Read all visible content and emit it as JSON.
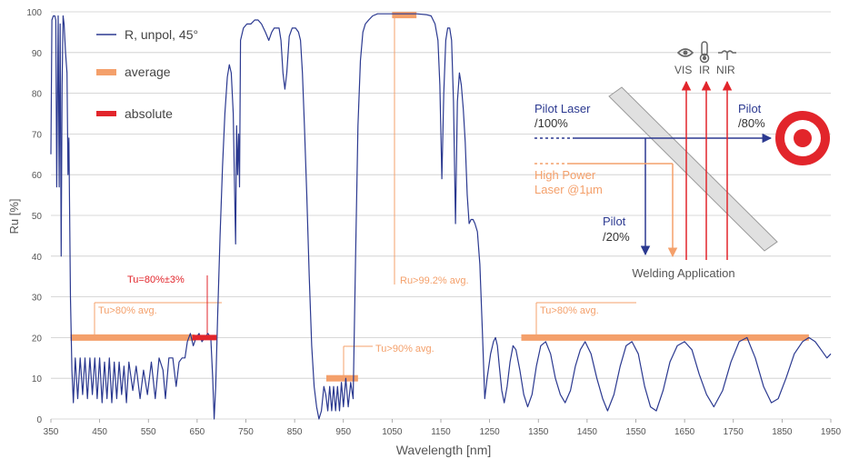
{
  "chart_data": {
    "type": "line",
    "title": "",
    "xlabel": "Wavelength [nm]",
    "ylabel": "Ru [%]",
    "xlim": [
      350,
      1950
    ],
    "ylim": [
      0,
      100
    ],
    "grid": "horizontal",
    "xticks": [
      "350",
      "450",
      "550",
      "650",
      "750",
      "850",
      "950",
      "1050",
      "1150",
      "1250",
      "1350",
      "1450",
      "1550",
      "1650",
      "1750",
      "1850",
      "1950"
    ],
    "yticks": [
      "0",
      "10",
      "20",
      "30",
      "40",
      "50",
      "60",
      "70",
      "80",
      "90",
      "100"
    ],
    "legend": [
      {
        "label": "R, unpol, 45°",
        "kind": "line",
        "color": "#2b3990"
      },
      {
        "label": "average",
        "kind": "bar",
        "color": "#f4a06b"
      },
      {
        "label": "absolute",
        "kind": "bar",
        "color": "#e2252b"
      }
    ],
    "series": [
      {
        "name": "R, unpol, 45°",
        "color": "#2b3990",
        "points": [
          [
            350,
            65
          ],
          [
            352,
            98
          ],
          [
            355,
            99
          ],
          [
            358,
            99
          ],
          [
            360,
            98
          ],
          [
            362,
            57
          ],
          [
            365,
            99
          ],
          [
            367,
            57
          ],
          [
            369,
            97
          ],
          [
            371,
            40
          ],
          [
            373,
            82
          ],
          [
            375,
            99
          ],
          [
            377,
            97
          ],
          [
            380,
            90
          ],
          [
            383,
            85
          ],
          [
            385,
            60
          ],
          [
            387,
            69
          ],
          [
            390,
            30
          ],
          [
            393,
            12
          ],
          [
            396,
            4
          ],
          [
            400,
            15
          ],
          [
            405,
            5
          ],
          [
            410,
            15
          ],
          [
            415,
            6
          ],
          [
            420,
            15
          ],
          [
            425,
            5
          ],
          [
            430,
            15
          ],
          [
            435,
            6
          ],
          [
            440,
            15
          ],
          [
            445,
            5
          ],
          [
            450,
            15
          ],
          [
            455,
            4
          ],
          [
            460,
            14
          ],
          [
            465,
            5
          ],
          [
            470,
            15
          ],
          [
            475,
            4
          ],
          [
            480,
            14
          ],
          [
            485,
            5
          ],
          [
            490,
            14
          ],
          [
            495,
            6
          ],
          [
            500,
            13
          ],
          [
            505,
            4
          ],
          [
            510,
            14
          ],
          [
            518,
            7
          ],
          [
            525,
            13
          ],
          [
            533,
            5
          ],
          [
            540,
            12
          ],
          [
            548,
            6
          ],
          [
            556,
            14
          ],
          [
            564,
            5
          ],
          [
            572,
            15
          ],
          [
            580,
            12
          ],
          [
            585,
            5
          ],
          [
            592,
            15
          ],
          [
            600,
            15
          ],
          [
            607,
            8
          ],
          [
            613,
            14
          ],
          [
            619,
            15
          ],
          [
            625,
            15
          ],
          [
            630,
            19
          ],
          [
            636,
            21
          ],
          [
            642,
            18
          ],
          [
            648,
            20
          ],
          [
            654,
            21
          ],
          [
            660,
            19
          ],
          [
            666,
            20
          ],
          [
            672,
            21
          ],
          [
            678,
            20
          ],
          [
            682,
            10
          ],
          [
            685,
            0
          ],
          [
            688,
            8
          ],
          [
            692,
            25
          ],
          [
            697,
            45
          ],
          [
            702,
            62
          ],
          [
            707,
            75
          ],
          [
            712,
            84
          ],
          [
            716,
            87
          ],
          [
            720,
            85
          ],
          [
            724,
            75
          ],
          [
            727,
            55
          ],
          [
            729,
            43
          ],
          [
            731,
            72
          ],
          [
            733,
            60
          ],
          [
            735,
            70
          ],
          [
            737,
            57
          ],
          [
            739,
            93
          ],
          [
            745,
            96
          ],
          [
            752,
            97
          ],
          [
            760,
            97
          ],
          [
            768,
            98
          ],
          [
            775,
            98
          ],
          [
            782,
            97
          ],
          [
            790,
            95
          ],
          [
            797,
            93
          ],
          [
            803,
            95
          ],
          [
            808,
            96
          ],
          [
            813,
            96
          ],
          [
            818,
            96
          ],
          [
            822,
            93
          ],
          [
            826,
            85
          ],
          [
            830,
            81
          ],
          [
            834,
            85
          ],
          [
            839,
            94
          ],
          [
            845,
            96
          ],
          [
            852,
            96
          ],
          [
            858,
            95
          ],
          [
            862,
            93
          ],
          [
            866,
            85
          ],
          [
            870,
            72
          ],
          [
            875,
            55
          ],
          [
            880,
            35
          ],
          [
            885,
            18
          ],
          [
            890,
            8
          ],
          [
            895,
            3
          ],
          [
            900,
            0
          ],
          [
            905,
            2
          ],
          [
            910,
            8
          ],
          [
            914,
            6
          ],
          [
            918,
            2
          ],
          [
            922,
            8
          ],
          [
            926,
            2
          ],
          [
            930,
            8
          ],
          [
            934,
            2
          ],
          [
            938,
            8
          ],
          [
            942,
            2
          ],
          [
            946,
            9
          ],
          [
            950,
            3
          ],
          [
            955,
            10
          ],
          [
            960,
            3
          ],
          [
            965,
            9
          ],
          [
            970,
            5
          ],
          [
            975,
            40
          ],
          [
            980,
            72
          ],
          [
            985,
            88
          ],
          [
            990,
            95
          ],
          [
            995,
            97
          ],
          [
            1002,
            98
          ],
          [
            1010,
            99
          ],
          [
            1020,
            99.5
          ],
          [
            1040,
            99.5
          ],
          [
            1060,
            99.5
          ],
          [
            1080,
            99.5
          ],
          [
            1100,
            99.5
          ],
          [
            1120,
            99.3
          ],
          [
            1130,
            99
          ],
          [
            1138,
            97
          ],
          [
            1144,
            93
          ],
          [
            1148,
            82
          ],
          [
            1152,
            59
          ],
          [
            1156,
            80
          ],
          [
            1160,
            93
          ],
          [
            1164,
            96
          ],
          [
            1168,
            96
          ],
          [
            1172,
            93
          ],
          [
            1176,
            78
          ],
          [
            1180,
            48
          ],
          [
            1184,
            78
          ],
          [
            1188,
            85
          ],
          [
            1192,
            82
          ],
          [
            1196,
            76
          ],
          [
            1200,
            68
          ],
          [
            1204,
            55
          ],
          [
            1208,
            48
          ],
          [
            1212,
            49
          ],
          [
            1216,
            49
          ],
          [
            1220,
            48
          ],
          [
            1225,
            46
          ],
          [
            1230,
            38
          ],
          [
            1235,
            22
          ],
          [
            1240,
            5
          ],
          [
            1245,
            10
          ],
          [
            1252,
            16
          ],
          [
            1258,
            19
          ],
          [
            1262,
            20
          ],
          [
            1266,
            18
          ],
          [
            1270,
            13
          ],
          [
            1275,
            7
          ],
          [
            1280,
            4
          ],
          [
            1286,
            8
          ],
          [
            1292,
            14
          ],
          [
            1298,
            18
          ],
          [
            1304,
            17
          ],
          [
            1312,
            12
          ],
          [
            1320,
            6
          ],
          [
            1328,
            3
          ],
          [
            1337,
            6
          ],
          [
            1346,
            13
          ],
          [
            1355,
            18
          ],
          [
            1365,
            19
          ],
          [
            1375,
            16
          ],
          [
            1385,
            10
          ],
          [
            1395,
            6
          ],
          [
            1405,
            4
          ],
          [
            1416,
            7
          ],
          [
            1426,
            13
          ],
          [
            1436,
            17
          ],
          [
            1446,
            19
          ],
          [
            1458,
            16
          ],
          [
            1470,
            10
          ],
          [
            1482,
            5
          ],
          [
            1492,
            2
          ],
          [
            1505,
            6
          ],
          [
            1518,
            13
          ],
          [
            1530,
            18
          ],
          [
            1542,
            19
          ],
          [
            1555,
            16
          ],
          [
            1568,
            8
          ],
          [
            1580,
            3
          ],
          [
            1592,
            2
          ],
          [
            1606,
            7
          ],
          [
            1620,
            14
          ],
          [
            1635,
            18
          ],
          [
            1650,
            19
          ],
          [
            1665,
            17
          ],
          [
            1680,
            11
          ],
          [
            1695,
            6
          ],
          [
            1710,
            3
          ],
          [
            1728,
            7
          ],
          [
            1745,
            14
          ],
          [
            1762,
            19
          ],
          [
            1778,
            20
          ],
          [
            1795,
            15
          ],
          [
            1812,
            8
          ],
          [
            1828,
            4
          ],
          [
            1842,
            5
          ],
          [
            1858,
            10
          ],
          [
            1875,
            16
          ],
          [
            1892,
            19
          ],
          [
            1905,
            20
          ],
          [
            1918,
            19
          ],
          [
            1930,
            17
          ],
          [
            1942,
            15
          ],
          [
            1950,
            16
          ]
        ]
      }
    ],
    "average_bars": [
      {
        "label": "Tu>80% avg.",
        "x0": 390,
        "x1": 645,
        "y": 20
      },
      {
        "label": "Tu>90% avg.",
        "x0": 915,
        "x1": 980,
        "y": 10
      },
      {
        "label": "Ru>99.2% avg.",
        "x0": 1050,
        "x1": 1100,
        "y": 99.2
      },
      {
        "label": "Tu>80% avg.",
        "x0": 1315,
        "x1": 1905,
        "y": 20
      }
    ],
    "absolute_bar": {
      "label": "Tu=80%±3%",
      "x0": 640,
      "x1": 690,
      "y": 20
    }
  },
  "inset": {
    "pilot_laser_label": "Pilot Laser",
    "pilot_laser_value": "/100%",
    "pilot_out_label": "Pilot",
    "pilot_out_value": "/80%",
    "high_power_label": "High Power",
    "high_power_value": "Laser @1µm",
    "pilot_down_label": "Pilot",
    "pilot_down_value": "/20%",
    "caption": "Welding Application",
    "vis_label": "VIS",
    "ir_label": "IR",
    "nir_label": "NIR",
    "icons": [
      "eye-icon",
      "thermometer-icon",
      "wave-icon",
      "target-icon"
    ],
    "colors": {
      "blue": "#2b3990",
      "orange": "#f4a06b",
      "red": "#e2252b"
    }
  }
}
